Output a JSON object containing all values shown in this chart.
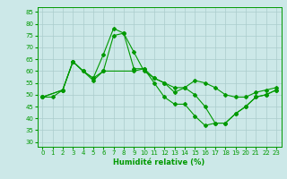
{
  "xlabel": "Humidité relative (%)",
  "background_color": "#cce8e8",
  "grid_color": "#aacccc",
  "line_color": "#009900",
  "xlim": [
    -0.5,
    23.5
  ],
  "ylim": [
    28,
    87
  ],
  "yticks": [
    30,
    35,
    40,
    45,
    50,
    55,
    60,
    65,
    70,
    75,
    80,
    85
  ],
  "xticks": [
    0,
    1,
    2,
    3,
    4,
    5,
    6,
    7,
    8,
    9,
    10,
    11,
    12,
    13,
    14,
    15,
    16,
    17,
    18,
    19,
    20,
    21,
    22,
    23
  ],
  "series": [
    {
      "x": [
        0,
        1,
        2,
        3,
        4,
        5,
        6,
        7,
        8,
        9,
        10,
        11,
        12,
        13,
        14,
        15,
        16,
        17,
        18,
        19,
        20,
        21,
        22,
        23
      ],
      "y": [
        49,
        49,
        52,
        64,
        60,
        57,
        67,
        78,
        76,
        61,
        61,
        55,
        49,
        46,
        46,
        41,
        37,
        38,
        38,
        42,
        45,
        49,
        50,
        52
      ]
    },
    {
      "x": [
        0,
        2,
        3,
        4,
        5,
        6,
        7,
        8,
        9,
        10,
        11,
        12,
        13,
        14,
        15,
        16,
        17,
        18,
        19,
        20,
        21,
        22,
        23
      ],
      "y": [
        49,
        52,
        64,
        60,
        57,
        60,
        75,
        76,
        68,
        60,
        57,
        55,
        53,
        53,
        56,
        55,
        53,
        50,
        49,
        49,
        51,
        52,
        53
      ]
    },
    {
      "x": [
        0,
        2,
        3,
        5,
        6,
        9,
        10,
        11,
        12,
        13,
        14,
        15,
        16,
        17,
        18,
        19,
        20,
        21,
        22,
        23
      ],
      "y": [
        49,
        52,
        64,
        56,
        60,
        60,
        61,
        57,
        55,
        51,
        53,
        50,
        45,
        38,
        38,
        42,
        45,
        49,
        50,
        52
      ]
    }
  ]
}
